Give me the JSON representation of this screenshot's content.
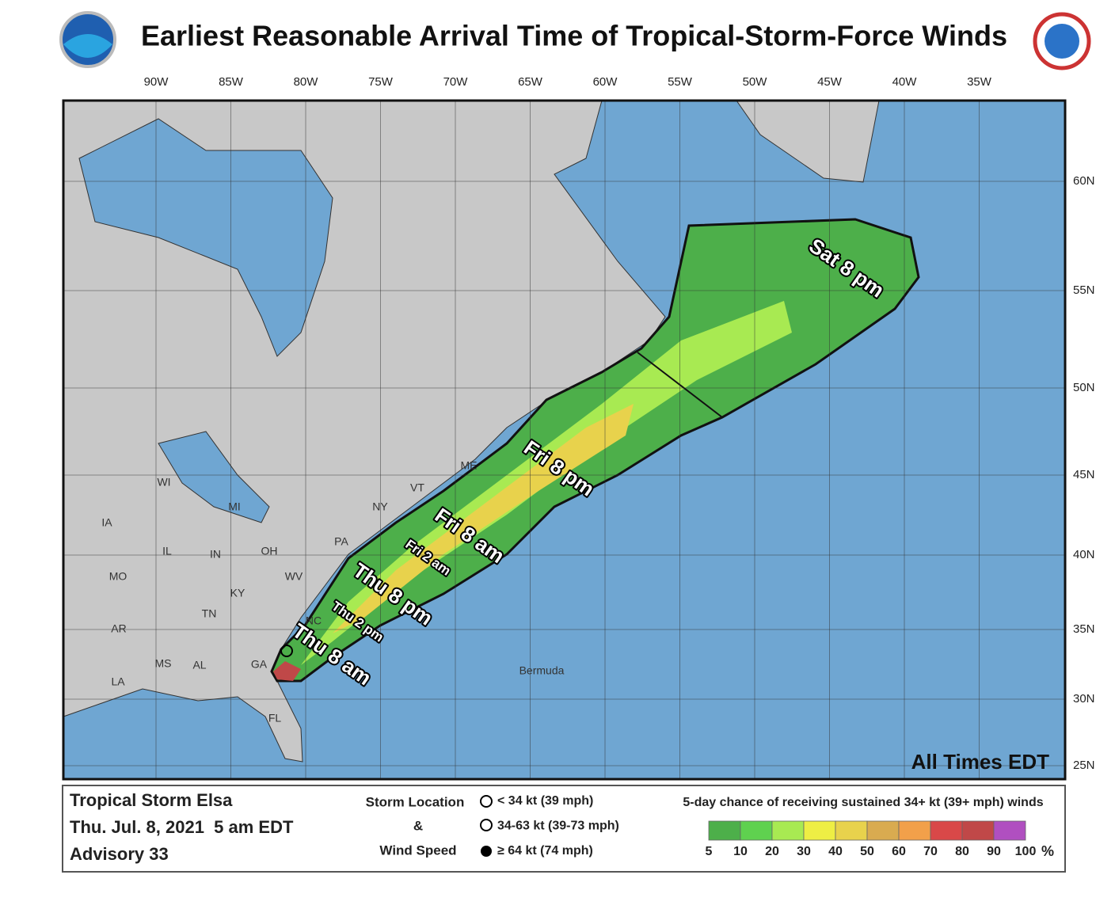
{
  "header": {
    "title": "Earliest Reasonable Arrival Time of Tropical-Storm-Force Winds"
  },
  "map": {
    "longitudes": [
      "90W",
      "85W",
      "80W",
      "75W",
      "70W",
      "65W",
      "60W",
      "55W",
      "50W",
      "45W",
      "40W",
      "35W"
    ],
    "latitudes": [
      "60N",
      "55N",
      "50N",
      "45N",
      "40N",
      "35N",
      "30N",
      "25N"
    ],
    "places": [
      "WI",
      "MI",
      "IA",
      "IL",
      "IN",
      "OH",
      "PA",
      "NY",
      "VT",
      "ME",
      "MO",
      "KY",
      "WV",
      "TN",
      "NC",
      "AR",
      "MS",
      "AL",
      "GA",
      "LA",
      "FL",
      "Bermuda"
    ],
    "arrival_times": [
      "Sat 8 pm",
      "Fri 8 pm",
      "Fri 8 am",
      "Fri 2 am",
      "Thu 8 pm",
      "Thu 2 pm",
      "Thu 8 am"
    ],
    "note": "All Times EDT"
  },
  "legend": {
    "storm": "Tropical Storm Elsa",
    "date": "Thu. Jul. 8, 2021  5 am EDT",
    "advisory": "Advisory 33",
    "location_title": "Storm Location",
    "amp": "&",
    "speed_title": "Wind Speed",
    "symbols": [
      "< 34 kt (39 mph)",
      "34-63 kt (39-73 mph)",
      "≥ 64 kt (74 mph)"
    ],
    "scale_title": "5-day chance of receiving sustained 34+ kt (39+ mph) winds",
    "scale_labels": [
      "5",
      "10",
      "20",
      "30",
      "40",
      "50",
      "60",
      "70",
      "80",
      "90",
      "100"
    ],
    "scale_unit": "%",
    "scale_colors": [
      "#4daf4a",
      "#5fd14f",
      "#a8ea52",
      "#eeee44",
      "#e8d24c",
      "#d9ab50",
      "#f2a04a",
      "#d94848",
      "#c04848",
      "#b04fc0"
    ]
  }
}
